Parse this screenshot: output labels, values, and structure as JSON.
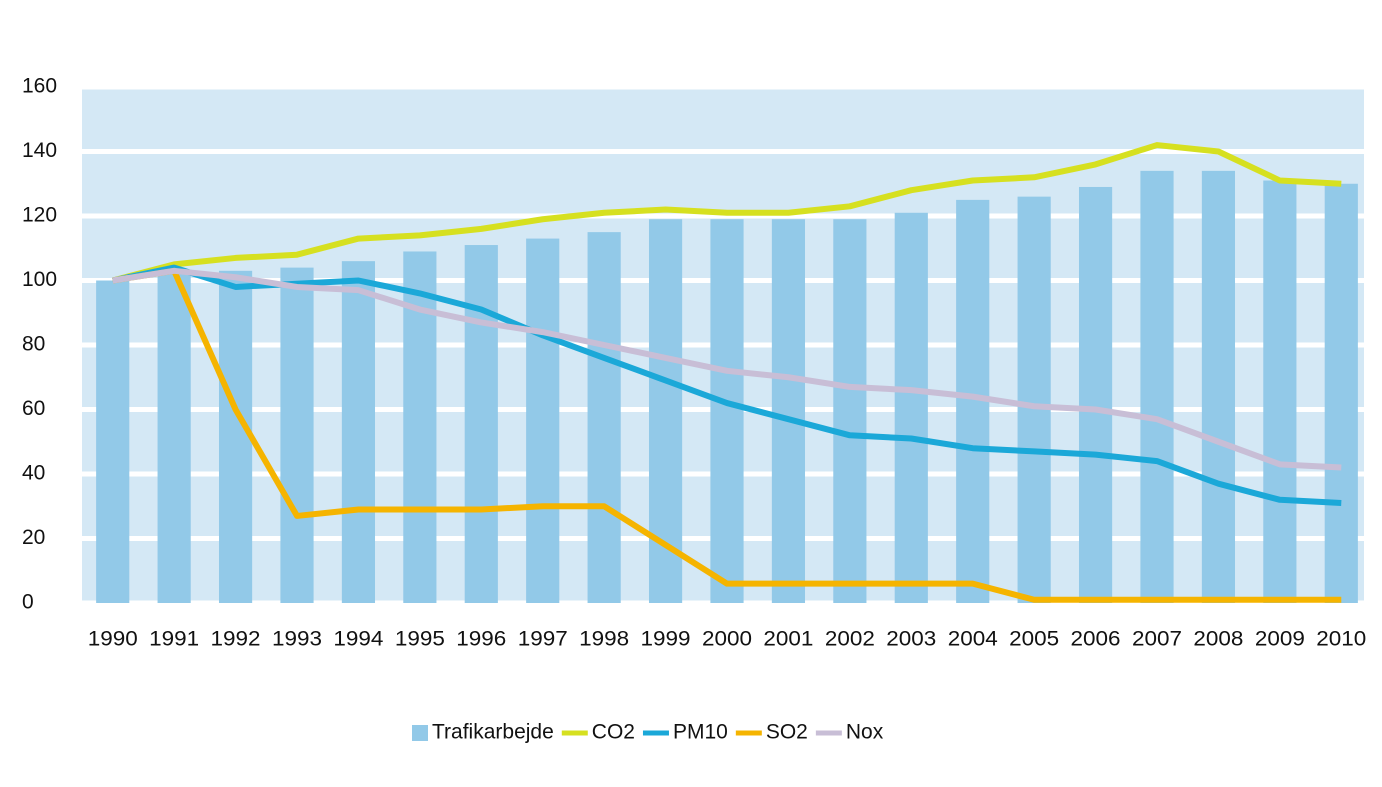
{
  "chart_data": {
    "type": "bar_line",
    "categories": [
      "1990",
      "1991",
      "1992",
      "1993",
      "1994",
      "1995",
      "1996",
      "1997",
      "1998",
      "1999",
      "2000",
      "2001",
      "2002",
      "2003",
      "2004",
      "2005",
      "2006",
      "2007",
      "2008",
      "2009",
      "2010"
    ],
    "series": [
      {
        "name": "Trafikarbejde",
        "type": "bar",
        "color": "#92c9e8",
        "values": [
          100,
          103,
          103,
          104,
          106,
          109,
          111,
          113,
          115,
          119,
          119,
          119,
          119,
          121,
          125,
          126,
          129,
          134,
          134,
          131,
          130
        ]
      },
      {
        "name": "CO2",
        "type": "line",
        "color": "#d6e020",
        "values": [
          100,
          105,
          107,
          108,
          113,
          114,
          116,
          119,
          121,
          122,
          121,
          121,
          123,
          128,
          131,
          132,
          136,
          142,
          140,
          131,
          130
        ]
      },
      {
        "name": "PM10",
        "type": "line",
        "color": "#1ba8d8",
        "values": [
          100,
          104,
          98,
          99,
          100,
          96,
          91,
          83,
          76,
          69,
          62,
          57,
          52,
          51,
          48,
          47,
          46,
          44,
          37,
          32,
          31
        ]
      },
      {
        "name": "SO2",
        "type": "line",
        "color": "#f5b400",
        "values": [
          100,
          103,
          60,
          27,
          29,
          29,
          29,
          30,
          30,
          18,
          6,
          6,
          6,
          6,
          6,
          1,
          1,
          1,
          1,
          1,
          1
        ]
      },
      {
        "name": "Nox",
        "type": "line",
        "color": "#c8bed6",
        "values": [
          100,
          103,
          101,
          98,
          97,
          91,
          87,
          84,
          80,
          76,
          72,
          70,
          67,
          66,
          64,
          61,
          60,
          57,
          50,
          43,
          42
        ]
      }
    ],
    "ylim": [
      0,
      160
    ],
    "yticks": [
      0,
      20,
      40,
      60,
      80,
      100,
      120,
      140,
      160
    ],
    "grid": true,
    "legend": "bottom"
  }
}
